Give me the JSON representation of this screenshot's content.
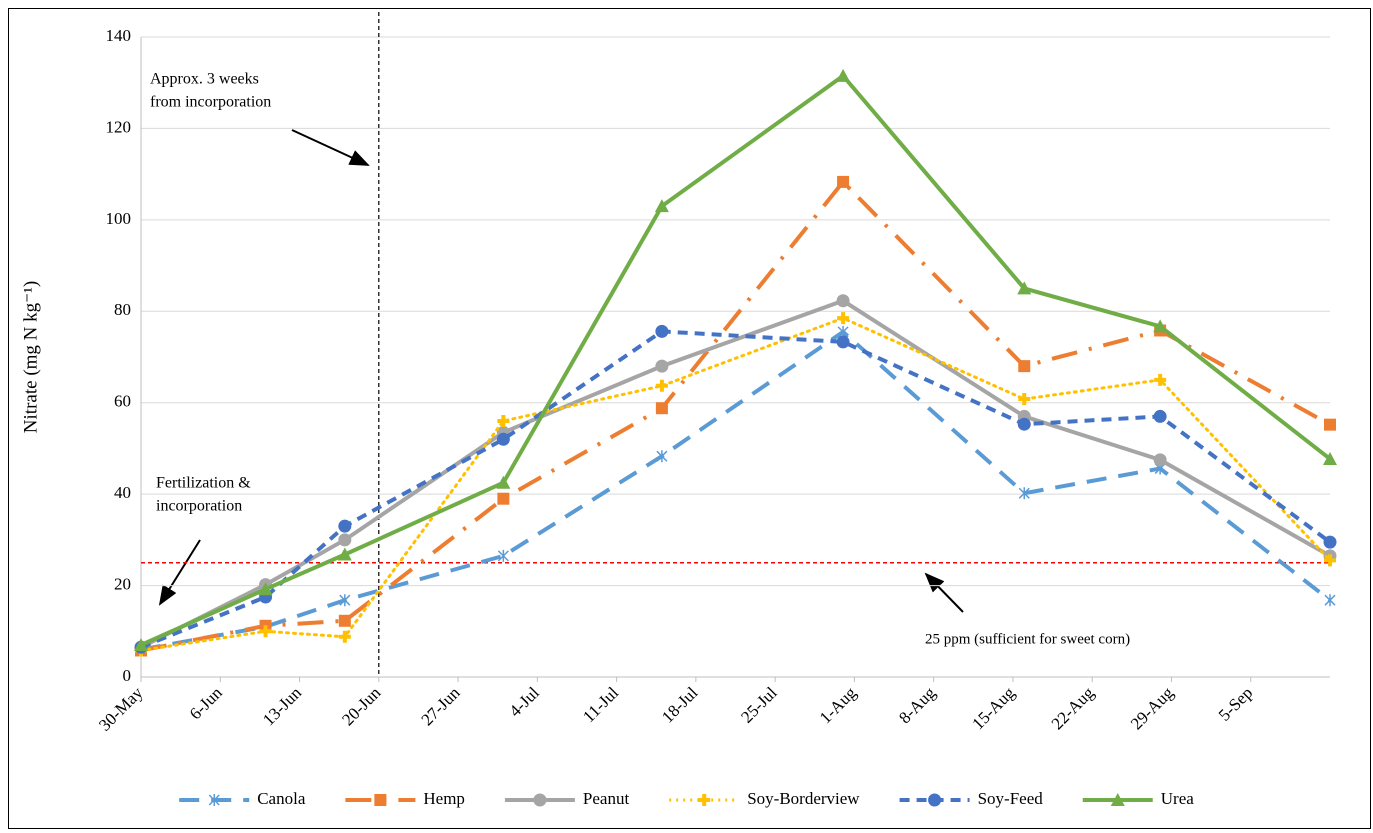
{
  "chart_data": {
    "type": "line",
    "y_label": "Nitrate (mg N kg⁻¹)",
    "x": [
      "30-May",
      "10-Jun",
      "17-Jun",
      "1-Jul",
      "15-Jul",
      "31-Jul",
      "16-Aug",
      "28-Aug",
      "12-Sep"
    ],
    "xlim": [
      "30-May",
      "12-Sep"
    ],
    "xticks": [
      "30-May",
      "6-Jun",
      "13-Jun",
      "20-Jun",
      "27-Jun",
      "4-Jul",
      "11-Jul",
      "18-Jul",
      "25-Jul",
      "1-Aug",
      "8-Aug",
      "15-Aug",
      "22-Aug",
      "29-Aug",
      "5-Sep"
    ],
    "ylim": [
      0,
      140
    ],
    "yticks": [
      0,
      20,
      40,
      60,
      80,
      100,
      120,
      140
    ],
    "grid": true,
    "legend": "bottom",
    "series": [
      {
        "name": "Canola",
        "color": "#5b9bd5",
        "dash": "long-dash",
        "marker": "asterisk",
        "values": [
          6,
          11,
          16.8,
          26.5,
          48.3,
          75.5,
          40.2,
          45.6,
          16.8
        ]
      },
      {
        "name": "Hemp",
        "color": "#ed7d31",
        "dash": "long-dash-dot",
        "marker": "square",
        "values": [
          5.8,
          11.2,
          12.3,
          39,
          58.8,
          108.3,
          68,
          75.8,
          55.2
        ]
      },
      {
        "name": "Peanut",
        "color": "#a5a5a5",
        "dash": "solid",
        "marker": "circle",
        "values": [
          6.5,
          20.2,
          30,
          53.5,
          68,
          82.3,
          57,
          47.5,
          26.5
        ]
      },
      {
        "name": "Soy-Borderview",
        "color": "#ffc000",
        "dash": "dot",
        "marker": "plus",
        "values": [
          5.8,
          10,
          8.8,
          56,
          63.7,
          78.5,
          60.8,
          65,
          25.5
        ]
      },
      {
        "name": "Soy-Feed",
        "color": "#4472c4",
        "dash": "dash",
        "marker": "circle",
        "values": [
          6.5,
          17.5,
          33,
          52,
          75.6,
          73.3,
          55.3,
          57,
          29.5
        ]
      },
      {
        "name": "Urea",
        "color": "#70ad47",
        "dash": "solid",
        "marker": "triangle",
        "values": [
          7,
          19.2,
          26.8,
          42.5,
          103,
          131.5,
          85,
          76.7,
          47.7
        ]
      }
    ],
    "hline": {
      "value": 25,
      "color": "#ff0000",
      "label": "25 ppm (sufficient for sweet corn)"
    },
    "vline": {
      "x": "20-Jun",
      "color": "#000000",
      "label": [
        "Approx. 3 weeks",
        "from incorporation"
      ]
    },
    "start_note": [
      "Fertilization &",
      "incorporation"
    ]
  }
}
